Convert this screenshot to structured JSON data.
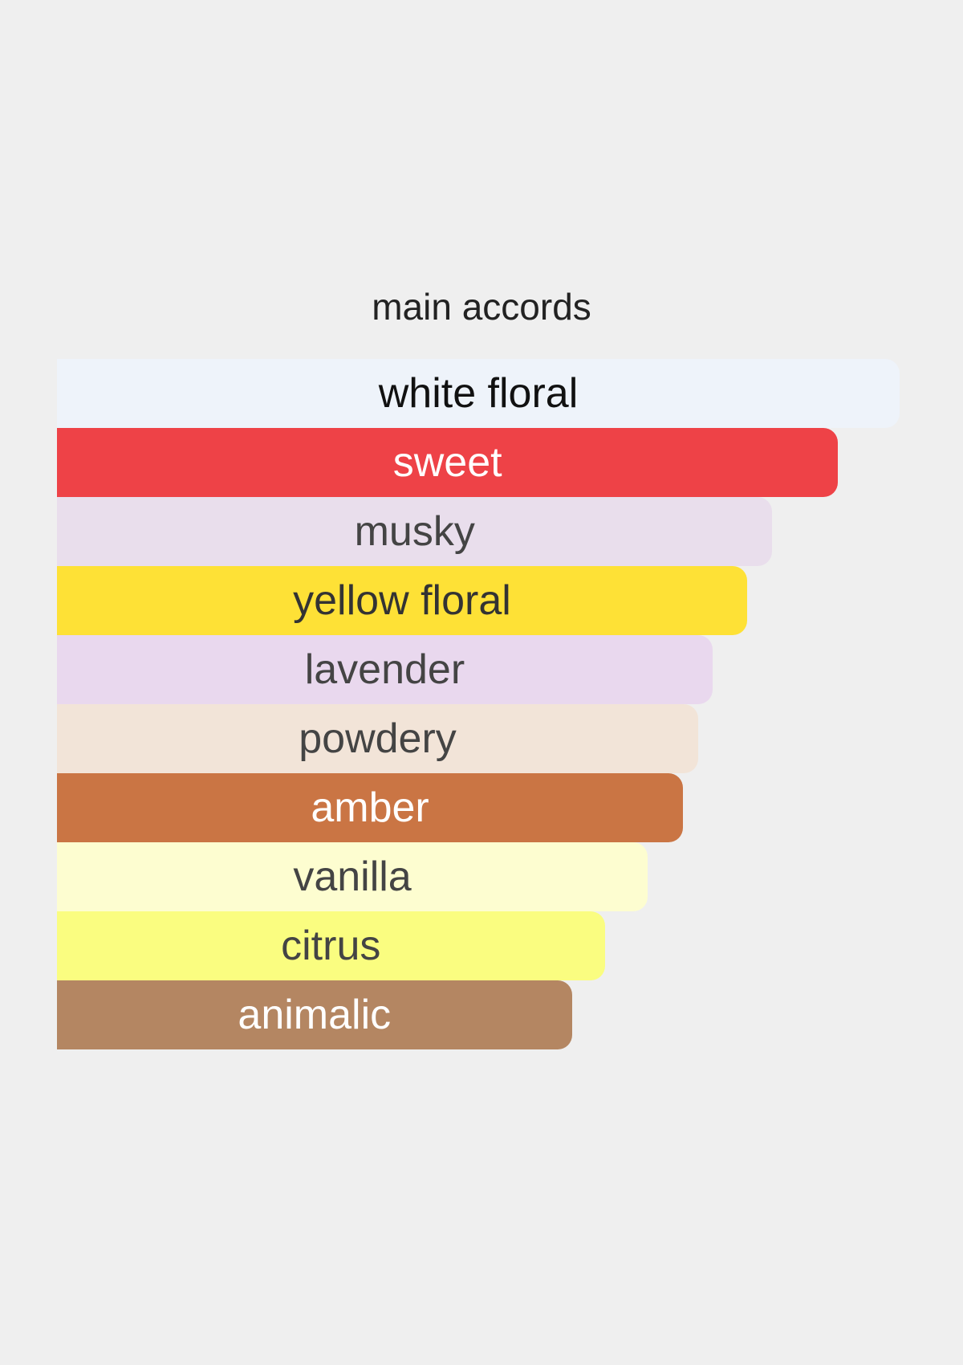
{
  "chart_data": {
    "type": "bar",
    "orientation": "horizontal",
    "title": "main accords",
    "grid": false,
    "categories": [
      "white floral",
      "sweet",
      "musky",
      "yellow floral",
      "lavender",
      "powdery",
      "amber",
      "vanilla",
      "citrus",
      "animalic"
    ],
    "values": [
      100,
      92.7,
      84.9,
      81.9,
      77.8,
      76.1,
      74.3,
      70.1,
      65.0,
      61.1
    ],
    "colors": [
      "#EEF3FA",
      "#EE4247",
      "#E9DEEC",
      "#FEE136",
      "#E9D8EE",
      "#F2E4D8",
      "#CA7544",
      "#FDFDD0",
      "#FAFD80",
      "#B48662"
    ],
    "text_colors": [
      "#111111",
      "#FFFFFF",
      "#444444",
      "#333333",
      "#444444",
      "#444444",
      "#FFFFFF",
      "#444444",
      "#444444",
      "#FFFFFF"
    ],
    "xlim": [
      0,
      100
    ]
  }
}
